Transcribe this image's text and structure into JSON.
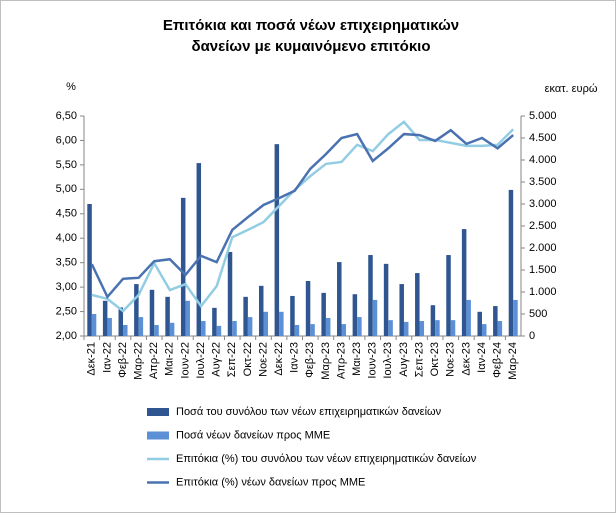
{
  "chart_data": {
    "type": "combo",
    "title": "Επιτόκια και ποσά νέων επιχειρηματικών δανείων με κυμαινόμενο επιτόκιο",
    "y_label": "%",
    "y2_label": "εκατ. ευρώ",
    "categories": [
      "Δεκ-21",
      "Ιαν-22",
      "Φεβ-22",
      "Μαρ-22",
      "Απρ-22",
      "Μαι-22",
      "Ιουν-22",
      "Ιουλ-22",
      "Αυγ-22",
      "Σεπ-22",
      "Οκτ-22",
      "Νοε-22",
      "Δεκ-22",
      "Ιαν-23",
      "Φεβ-23",
      "Μαρ-23",
      "Απρ-23",
      "Μαι-23",
      "Ιουν-23",
      "Ιουλ-23",
      "Αυγ-23",
      "Σεπ-23",
      "Οκτ-23",
      "Νοε-23",
      "Δεκ-23",
      "Ιαν-24",
      "Φεβ-24",
      "Μαρ-24"
    ],
    "series": [
      {
        "name": "Ποσά του συνόλου των νέων επιχειρηματικών δανείων",
        "type": "bar",
        "axis": "y2",
        "color": "#2f5690",
        "values": [
          3000,
          800,
          650,
          1180,
          1050,
          890,
          3140,
          3930,
          640,
          1910,
          890,
          1140,
          4360,
          910,
          1250,
          980,
          1680,
          950,
          1840,
          1640,
          1180,
          1430,
          700,
          1840,
          2430,
          550,
          680,
          3320
        ]
      },
      {
        "name": "Ποσά νέων δανείων προς ΜΜΕ",
        "type": "bar",
        "axis": "y2",
        "color": "#5b8fd6",
        "values": [
          500,
          410,
          250,
          430,
          250,
          300,
          800,
          340,
          230,
          340,
          430,
          550,
          550,
          250,
          270,
          410,
          270,
          430,
          820,
          360,
          320,
          340,
          360,
          360,
          820,
          270,
          340,
          820
        ]
      },
      {
        "name": "Επιτόκια (%) του συνόλου των νέων επιχειρηματικών δανείων",
        "type": "line",
        "color": "#93cde3",
        "values": [
          2.84,
          2.76,
          2.51,
          2.84,
          3.49,
          2.94,
          3.06,
          2.61,
          3.02,
          4.02,
          4.17,
          4.33,
          4.66,
          4.99,
          5.27,
          5.52,
          5.56,
          5.91,
          5.78,
          6.13,
          6.38,
          6.01,
          6.01,
          5.95,
          5.89,
          5.89,
          5.91,
          6.23
        ]
      },
      {
        "name": "Επιτόκια (%) νέων δανείων προς ΜΜΕ",
        "type": "line",
        "color": "#4a72b0",
        "values": [
          3.47,
          2.8,
          3.17,
          3.19,
          3.53,
          3.57,
          3.25,
          3.64,
          3.51,
          4.17,
          4.43,
          4.68,
          4.82,
          4.97,
          5.42,
          5.72,
          6.05,
          6.13,
          5.58,
          5.84,
          6.13,
          6.11,
          5.99,
          6.21,
          5.93,
          6.05,
          5.84,
          6.11
        ]
      }
    ],
    "ylim": [
      2,
      6.5
    ],
    "yticks": [
      {
        "value": 2,
        "label": "2,00"
      },
      {
        "value": 2.5,
        "label": "2,50"
      },
      {
        "value": 3,
        "label": "3,00"
      },
      {
        "value": 3.5,
        "label": "3,50"
      },
      {
        "value": 4,
        "label": "4,00"
      },
      {
        "value": 4.5,
        "label": "4,50"
      },
      {
        "value": 5,
        "label": "5,00"
      },
      {
        "value": 5.5,
        "label": "5,50"
      },
      {
        "value": 6,
        "label": "6,00"
      },
      {
        "value": 6.5,
        "label": "6,50"
      }
    ],
    "y2lim": [
      0,
      5000
    ],
    "y2ticks": [
      0,
      500,
      {
        "value": 1000,
        "label": "1.000"
      },
      {
        "value": 1500,
        "label": "1.500"
      },
      {
        "value": 2000,
        "label": "2.000"
      },
      {
        "value": 2500,
        "label": "2.500"
      },
      {
        "value": 3000,
        "label": "3.000"
      },
      {
        "value": 3500,
        "label": "3.500"
      },
      {
        "value": 4000,
        "label": "4.000"
      },
      {
        "value": 4500,
        "label": "4.500"
      },
      {
        "value": 5000,
        "label": "5.000"
      }
    ],
    "grid": false,
    "legend": "bottom"
  }
}
